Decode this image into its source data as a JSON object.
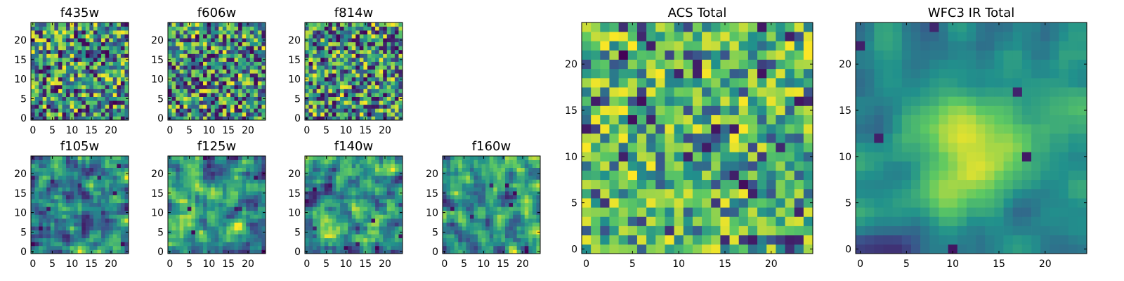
{
  "figure": {
    "colormap": "viridis",
    "colormap_stops": [
      "#440154",
      "#3b528b",
      "#21918c",
      "#5ec962",
      "#fde725"
    ],
    "background": "#ffffff"
  },
  "chart_data": [
    {
      "type": "heatmap",
      "title": "f435w",
      "grid_size": 25,
      "xticks": [
        "0",
        "5",
        "10",
        "15",
        "20"
      ],
      "yticks": [
        "0",
        "5",
        "10",
        "15",
        "20"
      ],
      "texture": "noise",
      "seed": 11
    },
    {
      "type": "heatmap",
      "title": "f606w",
      "grid_size": 25,
      "xticks": [
        "0",
        "5",
        "10",
        "15",
        "20"
      ],
      "yticks": [
        "0",
        "5",
        "10",
        "15",
        "20"
      ],
      "texture": "noise",
      "seed": 23
    },
    {
      "type": "heatmap",
      "title": "f814w",
      "grid_size": 25,
      "xticks": [
        "0",
        "5",
        "10",
        "15",
        "20"
      ],
      "yticks": [
        "0",
        "5",
        "10",
        "15",
        "20"
      ],
      "texture": "noise",
      "seed": 37
    },
    {
      "type": "heatmap",
      "title": "f105w",
      "grid_size": 25,
      "xticks": [
        "0",
        "5",
        "10",
        "15",
        "20"
      ],
      "yticks": [
        "0",
        "5",
        "10",
        "15",
        "20"
      ],
      "texture": "smooth",
      "seed": 41
    },
    {
      "type": "heatmap",
      "title": "f125w",
      "grid_size": 25,
      "xticks": [
        "0",
        "5",
        "10",
        "15",
        "20"
      ],
      "yticks": [
        "0",
        "5",
        "10",
        "15",
        "20"
      ],
      "texture": "smooth",
      "seed": 53
    },
    {
      "type": "heatmap",
      "title": "f140w",
      "grid_size": 25,
      "xticks": [
        "0",
        "5",
        "10",
        "15",
        "20"
      ],
      "yticks": [
        "0",
        "5",
        "10",
        "15",
        "20"
      ],
      "texture": "smooth",
      "seed": 67
    },
    {
      "type": "heatmap",
      "title": "f160w",
      "grid_size": 25,
      "xticks": [
        "0",
        "5",
        "10",
        "15",
        "20"
      ],
      "yticks": [
        "0",
        "5",
        "10",
        "15",
        "20"
      ],
      "texture": "smooth",
      "seed": 79
    },
    {
      "type": "heatmap",
      "title": "ACS Total",
      "grid_size": 25,
      "xticks": [
        "0",
        "5",
        "10",
        "15",
        "20"
      ],
      "yticks": [
        "0",
        "5",
        "10",
        "15",
        "20"
      ],
      "texture": "noise-bright",
      "seed": 83
    },
    {
      "type": "heatmap",
      "title": "WFC3 IR Total",
      "grid_size": 25,
      "xticks": [
        "0",
        "5",
        "10",
        "15",
        "20"
      ],
      "yticks": [
        "0",
        "5",
        "10",
        "15",
        "20"
      ],
      "texture": "centered-peak",
      "seed": 97
    }
  ]
}
